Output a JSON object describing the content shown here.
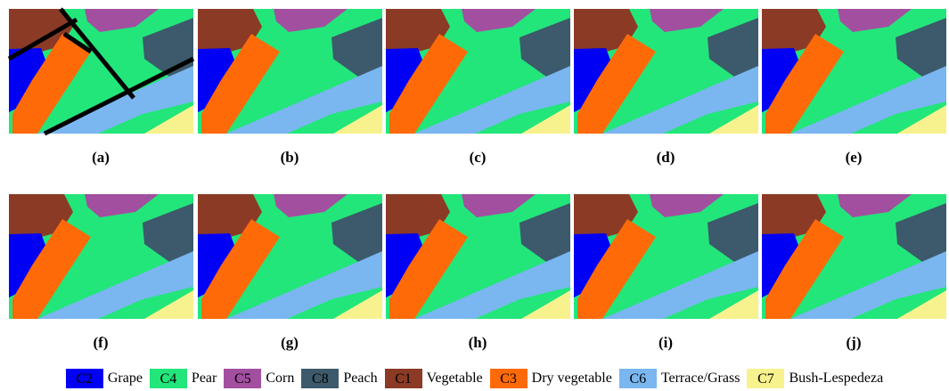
{
  "panels": [
    "(a)",
    "(b)",
    "(c)",
    "(d)",
    "(e)",
    "(f)",
    "(g)",
    "(h)",
    "(i)",
    "(j)"
  ],
  "legend": [
    {
      "code": "C2",
      "name": "Grape",
      "color": "#0000f5"
    },
    {
      "code": "C4",
      "name": "Pear",
      "color": "#22e67a"
    },
    {
      "code": "C5",
      "name": "Corn",
      "color": "#a24fa0"
    },
    {
      "code": "C8",
      "name": "Peach",
      "color": "#3c5a6b"
    },
    {
      "code": "C1",
      "name": "Vegetable",
      "color": "#8b3a26"
    },
    {
      "code": "C3",
      "name": "Dry vegetable",
      "color": "#ff6a08"
    },
    {
      "code": "C6",
      "name": "Terrace/Grass",
      "color": "#7ab6f0"
    },
    {
      "code": "C7",
      "name": "Bush-Lespedeza",
      "color": "#f8f28e"
    }
  ]
}
